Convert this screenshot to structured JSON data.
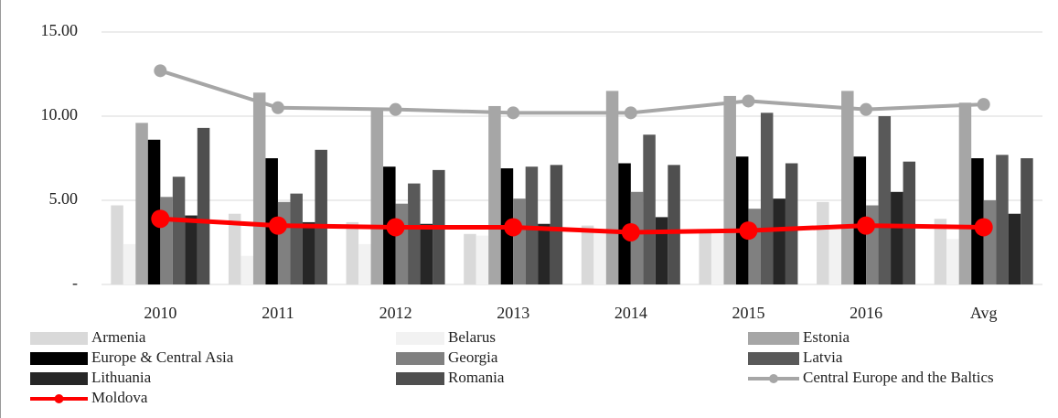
{
  "chart_data": {
    "type": "bar",
    "categories": [
      "2010",
      "2011",
      "2012",
      "2013",
      "2014",
      "2015",
      "2016",
      "Avg"
    ],
    "ylim": [
      0,
      15
    ],
    "yticks": [
      {
        "value": 0,
        "label": "-"
      },
      {
        "value": 5,
        "label": "5.00"
      },
      {
        "value": 10,
        "label": "10.00"
      },
      {
        "value": 15,
        "label": "15.00"
      }
    ],
    "grid": true,
    "legend": "bottom",
    "series": [
      {
        "name": "Armenia",
        "color": "#d9d9d9",
        "values": [
          4.7,
          4.2,
          3.7,
          3.0,
          3.5,
          3.2,
          4.9,
          3.9
        ]
      },
      {
        "name": "Belarus",
        "color": "#f2f2f2",
        "values": [
          2.4,
          1.7,
          2.4,
          2.9,
          3.2,
          3.0,
          3.3,
          2.7
        ]
      },
      {
        "name": "Estonia",
        "color": "#a6a6a6",
        "values": [
          9.6,
          11.4,
          10.4,
          10.6,
          11.5,
          11.2,
          11.5,
          10.8
        ]
      },
      {
        "name": "Europe & Central Asia",
        "color": "#000000",
        "values": [
          8.6,
          7.5,
          7.0,
          6.9,
          7.2,
          7.6,
          7.6,
          7.5
        ]
      },
      {
        "name": "Georgia",
        "color": "#808080",
        "values": [
          5.2,
          4.9,
          4.8,
          5.1,
          5.5,
          4.5,
          4.7,
          5.0
        ]
      },
      {
        "name": "Latvia",
        "color": "#595959",
        "values": [
          6.4,
          5.4,
          6.0,
          7.0,
          8.9,
          10.2,
          10.0,
          7.7
        ]
      },
      {
        "name": "Lithuania",
        "color": "#262626",
        "values": [
          4.1,
          3.7,
          3.6,
          3.6,
          4.0,
          5.1,
          5.5,
          4.2
        ]
      },
      {
        "name": "Romania",
        "color": "#4f4f4f",
        "values": [
          9.3,
          8.0,
          6.8,
          7.1,
          7.1,
          7.2,
          7.3,
          7.5
        ]
      },
      {
        "name": "Central Europe and the Baltics",
        "type": "line",
        "color": "#a6a6a6",
        "values": [
          12.7,
          10.5,
          10.4,
          10.2,
          10.2,
          10.9,
          10.4,
          10.7
        ]
      },
      {
        "name": "Moldova",
        "type": "line",
        "color": "#ff0000",
        "values": [
          3.9,
          3.5,
          3.4,
          3.4,
          3.1,
          3.2,
          3.5,
          3.4
        ]
      }
    ]
  }
}
